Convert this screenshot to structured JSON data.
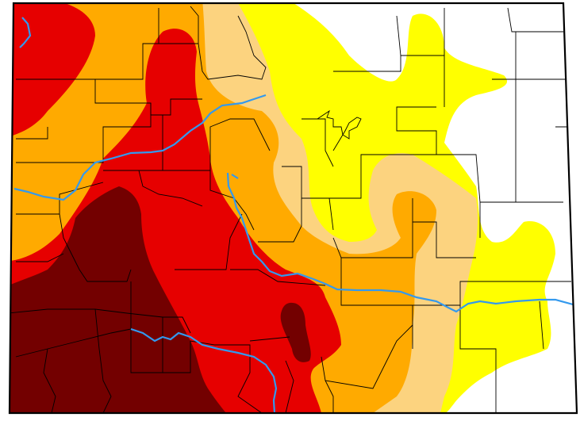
{
  "map": {
    "region": "Colorado",
    "legend_visible": false,
    "colors": {
      "none": "#ffffff",
      "abnormally_dry": "#ffff00",
      "moderate": "#fcd37f",
      "severe": "#ffaa00",
      "extreme": "#e60000",
      "exceptional": "#730000",
      "rivers": "#3399ee",
      "county_lines": "#000000"
    },
    "category_names": [
      "none",
      "abnormally_dry",
      "moderate",
      "severe",
      "extreme",
      "exceptional"
    ]
  }
}
